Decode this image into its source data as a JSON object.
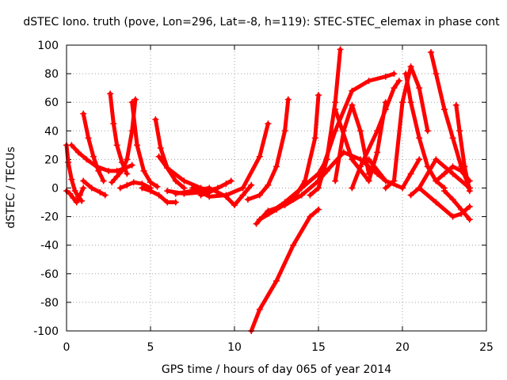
{
  "chart_data": {
    "type": "scatter",
    "title": "dSTEC Iono. truth (pove, Lon=296, Lat=-8, h=119): STEC-STEC_elemax in phase cont",
    "xlabel": "GPS time / hours of day 065 of year 2014",
    "ylabel": "dSTEC  / TECUs",
    "xlim": [
      0,
      25
    ],
    "ylim": [
      -100,
      100
    ],
    "xticks": [
      0,
      5,
      10,
      15,
      20,
      25
    ],
    "yticks": [
      -100,
      -80,
      -60,
      -40,
      -20,
      0,
      20,
      40,
      60,
      80,
      100
    ],
    "grid": true,
    "marker": "plus",
    "colors": {
      "series": "#ff0000"
    },
    "series": [
      {
        "x": [
          0.0,
          0.1,
          0.3,
          0.5,
          0.7,
          0.9
        ],
        "y": [
          30,
          18,
          6,
          -2,
          -6,
          -9
        ]
      },
      {
        "x": [
          0.0,
          0.2,
          0.4,
          0.6,
          0.8,
          1.0
        ],
        "y": [
          -2,
          -4,
          -7,
          -10,
          -5,
          0
        ]
      },
      {
        "x": [
          0.3,
          0.7,
          1.2,
          1.8,
          2.5,
          3.0,
          3.5,
          3.9
        ],
        "y": [
          30,
          25,
          20,
          15,
          12,
          12,
          14,
          16
        ]
      },
      {
        "x": [
          1.0,
          1.3,
          1.6,
          1.9,
          2.2
        ],
        "y": [
          52,
          35,
          22,
          12,
          5
        ]
      },
      {
        "x": [
          1.0,
          1.5,
          2.0,
          2.3
        ],
        "y": [
          5,
          0,
          -3,
          -5
        ]
      },
      {
        "x": [
          2.6,
          2.8,
          3.0,
          3.3,
          3.6
        ],
        "y": [
          66,
          45,
          30,
          18,
          10
        ]
      },
      {
        "x": [
          2.7,
          3.0,
          3.3,
          3.6,
          3.9,
          4.1
        ],
        "y": [
          4,
          8,
          12,
          20,
          40,
          62
        ]
      },
      {
        "x": [
          3.2,
          3.6,
          4.0,
          4.5,
          5.0
        ],
        "y": [
          0,
          2,
          4,
          3,
          0
        ]
      },
      {
        "x": [
          3.9,
          4.2,
          4.6,
          5.0,
          5.4
        ],
        "y": [
          60,
          30,
          12,
          4,
          1
        ]
      },
      {
        "x": [
          4.5,
          5.0,
          5.5,
          6.0,
          6.5
        ],
        "y": [
          0,
          -2,
          -5,
          -10,
          -10
        ]
      },
      {
        "x": [
          5.3,
          5.6,
          6.0,
          6.5,
          7.0
        ],
        "y": [
          48,
          28,
          14,
          5,
          0
        ]
      },
      {
        "x": [
          5.5,
          6.0,
          7.0,
          8.0,
          8.5
        ],
        "y": [
          22,
          14,
          5,
          0,
          -2
        ]
      },
      {
        "x": [
          6.0,
          7.0,
          8.0,
          9.0
        ],
        "y": [
          -2,
          -4,
          -3,
          0
        ]
      },
      {
        "x": [
          6.5,
          7.5,
          8.5,
          9.5,
          10.0,
          10.5,
          11.0
        ],
        "y": [
          -4,
          -2,
          0,
          -6,
          -12,
          -5,
          2
        ]
      },
      {
        "x": [
          7.5,
          8.5,
          9.5,
          10.5,
          11.5,
          12.0
        ],
        "y": [
          0,
          -6,
          -5,
          0,
          22,
          45
        ]
      },
      {
        "x": [
          8.0,
          8.5,
          9.0,
          9.5,
          9.8
        ],
        "y": [
          -5,
          -3,
          0,
          3,
          5
        ]
      },
      {
        "x": [
          10.8,
          11.5,
          12.0,
          12.5,
          13.0,
          13.2
        ],
        "y": [
          -8,
          -5,
          2,
          15,
          40,
          62
        ]
      },
      {
        "x": [
          11.0,
          11.5,
          12.5,
          13.5,
          14.5,
          15.0
        ],
        "y": [
          -100,
          -85,
          -65,
          -40,
          -20,
          -15
        ]
      },
      {
        "x": [
          11.3,
          12.0,
          13.0,
          14.0,
          15.0,
          15.5
        ],
        "y": [
          -25,
          -16,
          -12,
          -5,
          5,
          12
        ]
      },
      {
        "x": [
          11.5,
          12.5,
          13.5,
          14.2,
          14.8,
          15.0
        ],
        "y": [
          -22,
          -15,
          -8,
          5,
          35,
          65
        ]
      },
      {
        "x": [
          12.0,
          13.0,
          14.0,
          15.0,
          15.5
        ],
        "y": [
          -18,
          -10,
          0,
          10,
          20
        ]
      },
      {
        "x": [
          14.5,
          15.0,
          15.5,
          16.0,
          16.3
        ],
        "y": [
          -5,
          0,
          20,
          60,
          97
        ]
      },
      {
        "x": [
          15.0,
          16.0,
          17.0,
          18.0,
          19.0,
          19.5
        ],
        "y": [
          5,
          40,
          68,
          75,
          78,
          80
        ]
      },
      {
        "x": [
          16.0,
          16.5,
          17.0,
          17.5,
          18.0
        ],
        "y": [
          5,
          40,
          58,
          40,
          10
        ]
      },
      {
        "x": [
          15.5,
          16.5,
          17.5,
          18.5,
          19.0
        ],
        "y": [
          12,
          25,
          20,
          10,
          5
        ]
      },
      {
        "x": [
          16.0,
          17.0,
          18.0,
          18.5,
          19.0
        ],
        "y": [
          55,
          20,
          5,
          25,
          60
        ]
      },
      {
        "x": [
          17.0,
          17.5,
          18.5,
          19.0,
          19.5,
          19.8
        ],
        "y": [
          0,
          15,
          40,
          55,
          70,
          75
        ]
      },
      {
        "x": [
          18.0,
          19.0,
          20.0,
          20.5,
          21.0
        ],
        "y": [
          20,
          5,
          0,
          10,
          20
        ]
      },
      {
        "x": [
          19.0,
          19.5,
          20.0,
          20.5,
          21.0,
          21.5
        ],
        "y": [
          0,
          5,
          60,
          85,
          70,
          40
        ]
      },
      {
        "x": [
          20.2,
          20.5,
          21.0,
          21.5,
          22.0,
          22.5
        ],
        "y": [
          80,
          60,
          35,
          15,
          5,
          0
        ]
      },
      {
        "x": [
          20.5,
          21.0,
          22.0,
          23.0,
          24.0
        ],
        "y": [
          -5,
          0,
          20,
          10,
          0
        ]
      },
      {
        "x": [
          21.7,
          22.0,
          22.5,
          23.0,
          23.5,
          24.0
        ],
        "y": [
          95,
          80,
          55,
          35,
          15,
          0
        ]
      },
      {
        "x": [
          21.0,
          22.0,
          23.0,
          23.5,
          24.0
        ],
        "y": [
          0,
          -10,
          -20,
          -18,
          -13
        ]
      },
      {
        "x": [
          22.0,
          22.5,
          23.0,
          23.5,
          24.0
        ],
        "y": [
          5,
          10,
          15,
          12,
          5
        ]
      },
      {
        "x": [
          23.2,
          23.4,
          23.7,
          24.0
        ],
        "y": [
          58,
          40,
          15,
          -2
        ]
      },
      {
        "x": [
          22.5,
          23.0,
          23.5,
          24.0
        ],
        "y": [
          -2,
          -8,
          -15,
          -22
        ]
      }
    ]
  }
}
